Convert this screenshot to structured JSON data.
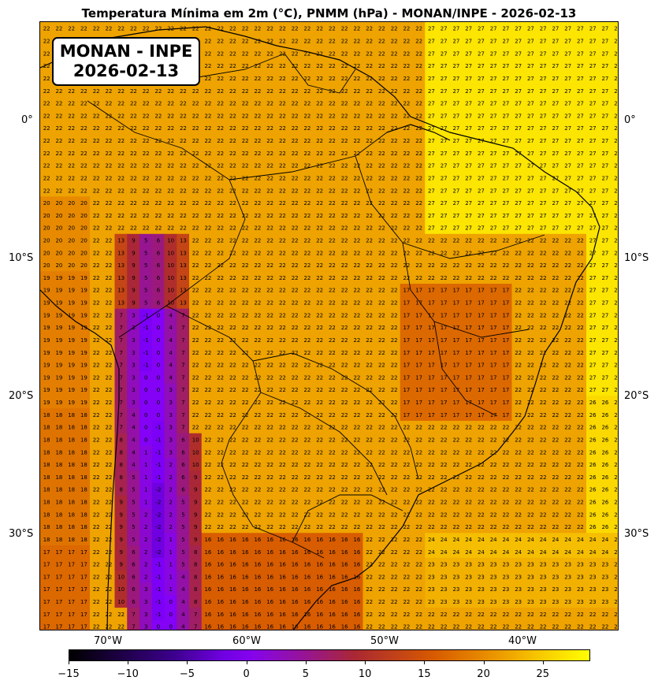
{
  "title": "Temperatura Mínima em 2m (°C), PNMM (hPa) - MONAN/INPE - 2026-02-13",
  "badge": {
    "line1": "MONAN - INPE",
    "line2": "2026-02-13"
  },
  "lat_labels": [
    "0°",
    "10°S",
    "20°S",
    "30°S"
  ],
  "lon_labels": [
    "70°W",
    "60°W",
    "50°W",
    "40°W"
  ],
  "colorbar": {
    "ticks": [
      "−15",
      "−10",
      "−5",
      "0",
      "5",
      "10",
      "15",
      "20",
      "25"
    ],
    "range": [
      -15,
      29
    ],
    "colormap": "gnuplot2-like",
    "colors": {
      "low": "#000000",
      "mid_low": "#7a00ff",
      "mid": "#c83c0a",
      "high": "#ffff00"
    }
  },
  "map": {
    "lon_range": [
      -78,
      -36
    ],
    "lat_range": [
      -37,
      7
    ],
    "grid_step_deg": 0.9,
    "field": "minimum temperature at 2 m (°C) printed in each grid cell"
  }
}
